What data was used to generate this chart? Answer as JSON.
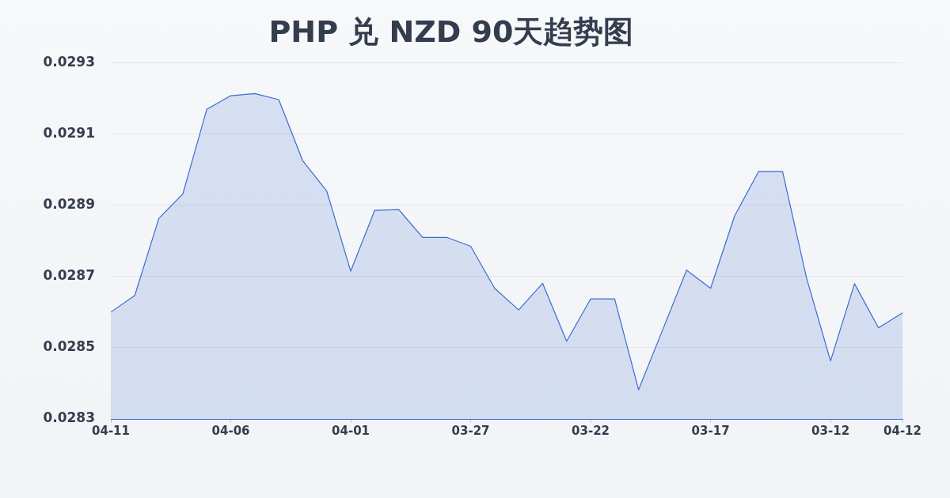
{
  "chart_data": {
    "type": "area",
    "title": "PHP 兑 NZD 90天趋势图",
    "categories": [
      "04-11",
      null,
      null,
      null,
      null,
      "04-06",
      null,
      null,
      null,
      null,
      "04-01",
      null,
      null,
      null,
      null,
      "03-27",
      null,
      null,
      null,
      null,
      "03-22",
      null,
      null,
      null,
      null,
      "03-17",
      null,
      null,
      null,
      null,
      "03-12",
      null,
      null,
      "04-12"
    ],
    "series": [
      {
        "color": "#3a6bd0",
        "values": [
          0.0286,
          0.028647,
          0.028863,
          0.028932,
          0.02917,
          0.029208,
          0.029214,
          0.029197,
          0.029025,
          0.02894,
          0.028715,
          0.028886,
          0.028888,
          0.02881,
          0.02881,
          0.028785,
          0.028667,
          0.028606,
          0.028681,
          0.028518,
          0.028637,
          0.028637,
          0.028382,
          0.02855,
          0.028718,
          0.028667,
          0.02887,
          0.028995,
          0.028995,
          0.028696,
          0.028463,
          0.02868,
          0.028556,
          0.028598
        ]
      }
    ],
    "ylim": [
      0.0283,
      0.0293
    ],
    "yticks": [
      0.0283,
      0.0285,
      0.0287,
      0.0289,
      0.0291,
      0.0293
    ],
    "grid": "y"
  }
}
